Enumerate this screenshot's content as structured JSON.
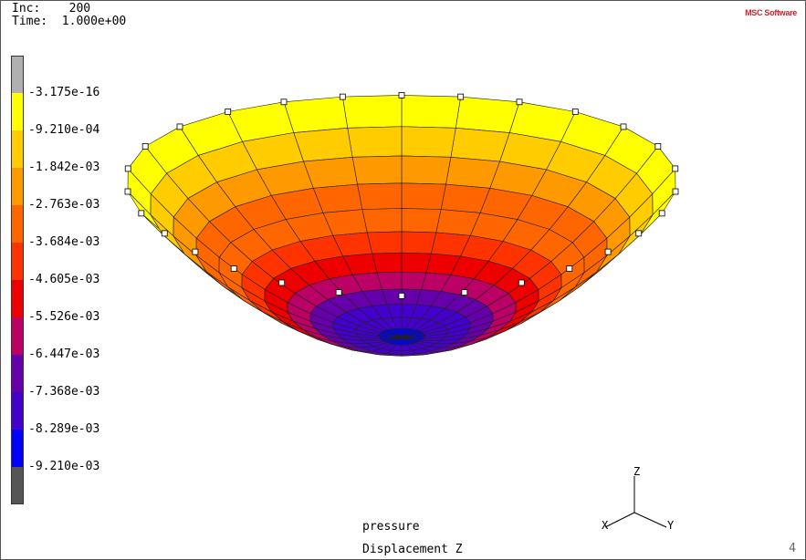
{
  "header": {
    "inc_label": "Inc:",
    "inc_value": "200",
    "time_label": "Time:",
    "time_value": "1.000e+00"
  },
  "brand": {
    "text": "MSC Software",
    "color": "#d0202a"
  },
  "chart_data": {
    "type": "heatmap",
    "title": "",
    "variable": "Displacement Z",
    "load_case": "pressure",
    "legend": {
      "labels": [
        "-3.175e-16",
        "-9.210e-04",
        "-1.842e-03",
        "-2.763e-03",
        "-3.684e-03",
        "-4.605e-03",
        "-5.526e-03",
        "-6.447e-03",
        "-7.368e-03",
        "-8.289e-03",
        "-9.210e-03"
      ],
      "colors": [
        "#b0b0b0",
        "#ffff00",
        "#ffcc00",
        "#ff9900",
        "#ff6600",
        "#ff3300",
        "#ee0000",
        "#bb0066",
        "#6600aa",
        "#4400cc",
        "#0000ff",
        "#555555"
      ]
    },
    "axes": {
      "x": "X",
      "y": "Y",
      "z": "Z"
    }
  },
  "footer": {
    "page_number": "4"
  }
}
